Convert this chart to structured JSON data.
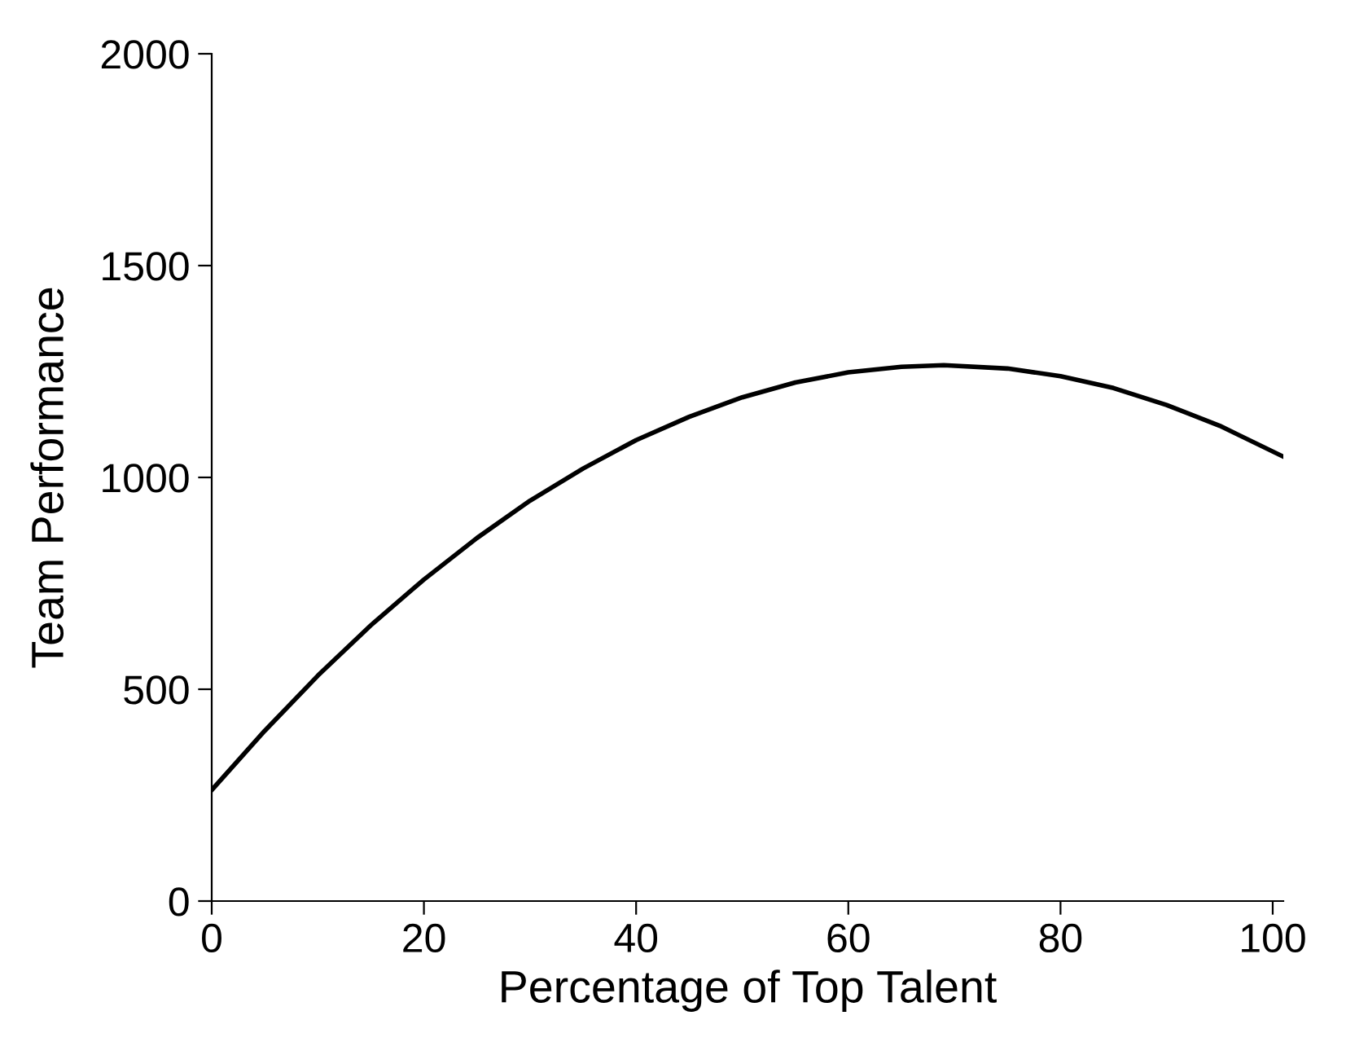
{
  "chart_data": {
    "type": "line",
    "xlabel": "Percentage of Top Talent",
    "ylabel": "Team Performance",
    "x": [
      0,
      5,
      10,
      15,
      20,
      25,
      30,
      35,
      40,
      45,
      50,
      55,
      60,
      65,
      69,
      75,
      80,
      85,
      90,
      95,
      101
    ],
    "series": [
      {
        "color": "#000000",
        "values": [
          262,
          402,
          532,
          651,
          759,
          857,
          945,
          1021,
          1088,
          1143,
          1189,
          1224,
          1248,
          1261,
          1265,
          1257,
          1239,
          1211,
          1171,
          1122,
          1049
        ]
      }
    ],
    "xlim": [
      0,
      101
    ],
    "xticks": [
      0,
      20,
      40,
      60,
      80,
      100
    ],
    "ylim": [
      0,
      2000
    ],
    "yticks": [
      0,
      500,
      1000,
      1500,
      2000
    ],
    "grid": false,
    "marker": "none",
    "line_style": "solid"
  }
}
